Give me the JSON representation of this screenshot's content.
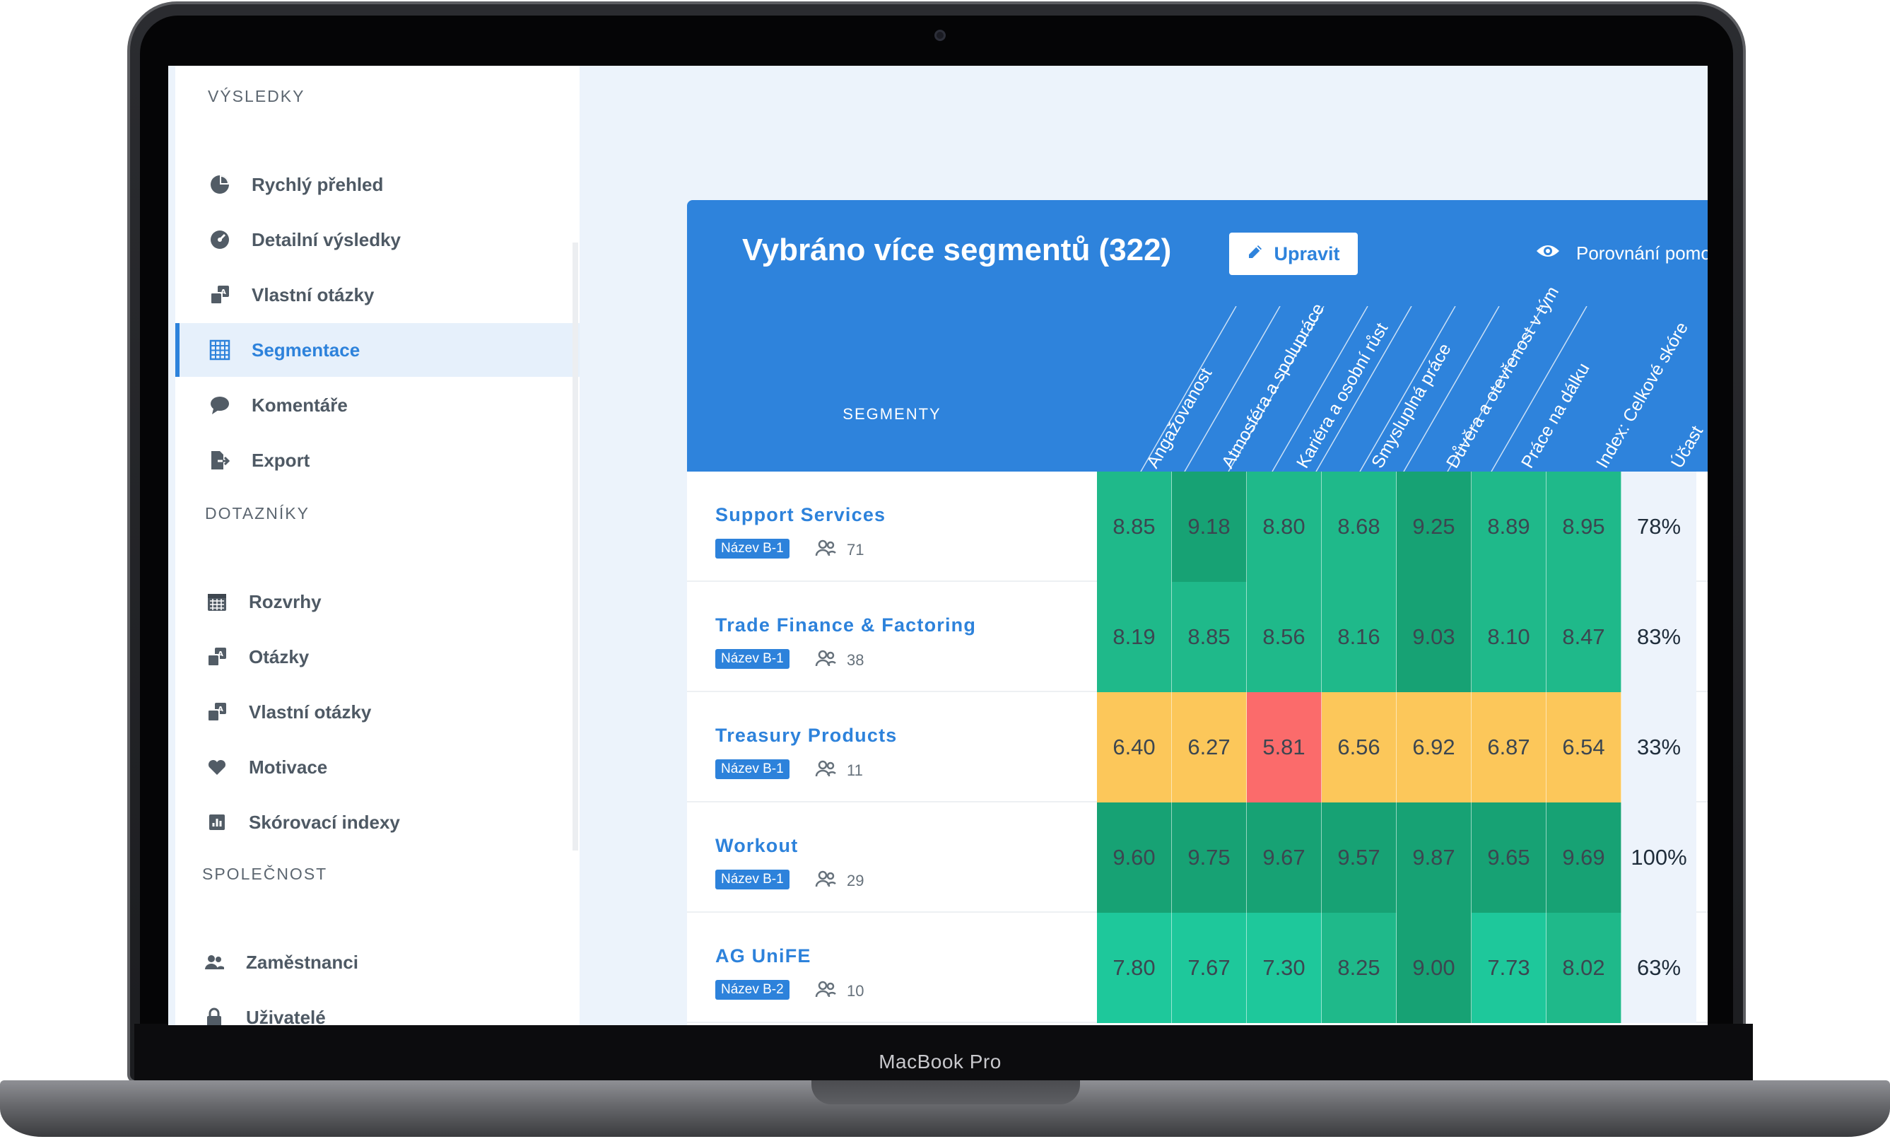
{
  "device": {
    "label": "MacBook Pro"
  },
  "sidebar": {
    "sections": [
      {
        "title": "VÝSLEDKY",
        "items": [
          {
            "label": "Rychlý přehled",
            "icon": "pie-chart-icon"
          },
          {
            "label": "Detailní výsledky",
            "icon": "gauge-icon"
          },
          {
            "label": "Vlastní otázky",
            "icon": "custom-question-icon"
          },
          {
            "label": "Segmentace",
            "icon": "grid-icon",
            "active": true
          },
          {
            "label": "Komentáře",
            "icon": "comment-icon"
          },
          {
            "label": "Export",
            "icon": "export-icon"
          }
        ]
      },
      {
        "title": "DOTAZNÍKY",
        "items": [
          {
            "label": "Rozvrhy",
            "icon": "calendar-icon"
          },
          {
            "label": "Otázky",
            "icon": "custom-question-icon"
          },
          {
            "label": "Vlastní otázky",
            "icon": "custom-question-icon"
          },
          {
            "label": "Motivace",
            "icon": "heart-icon"
          },
          {
            "label": "Skórovací indexy",
            "icon": "bar-chart-icon"
          }
        ]
      },
      {
        "title": "SPOLEČNOST",
        "items": [
          {
            "label": "Zaměstnanci",
            "icon": "people-icon"
          },
          {
            "label": "Uživatelé",
            "icon": "lock-icon"
          }
        ]
      }
    ]
  },
  "panel": {
    "title": "Vybráno více segmentů (322)",
    "edit_label": "Upravit",
    "compare_label": "Porovnání pomoc",
    "segments_header": "SEGMENTY",
    "columns": [
      "Angažovanost",
      "Atmosféra a spolupráce",
      "Kariéra a osobní růst",
      "Smysluplná práce",
      "Důvěra a otevřenost v tým",
      "Práce na dálku",
      "Index: Celkové skóre",
      "Účast"
    ]
  },
  "rows": [
    {
      "name": "Support Services",
      "badge": "Název B-1",
      "count": "71",
      "scores": [
        "8.85",
        "9.18",
        "8.80",
        "8.68",
        "9.25",
        "8.89",
        "8.95"
      ],
      "participation": "78%"
    },
    {
      "name": "Trade Finance & Factoring",
      "badge": "Název B-1",
      "count": "38",
      "scores": [
        "8.19",
        "8.85",
        "8.56",
        "8.16",
        "9.03",
        "8.10",
        "8.47"
      ],
      "participation": "83%"
    },
    {
      "name": "Treasury Products",
      "badge": "Název B-1",
      "count": "11",
      "scores": [
        "6.40",
        "6.27",
        "5.81",
        "6.56",
        "6.92",
        "6.87",
        "6.54"
      ],
      "participation": "33%"
    },
    {
      "name": "Workout",
      "badge": "Název B-1",
      "count": "29",
      "scores": [
        "9.60",
        "9.75",
        "9.67",
        "9.57",
        "9.87",
        "9.65",
        "9.69"
      ],
      "participation": "100%"
    },
    {
      "name": "AG UniFE",
      "badge": "Název B-2",
      "count": "10",
      "scores": [
        "7.80",
        "7.67",
        "7.30",
        "8.25",
        "9.00",
        "7.73",
        "8.02"
      ],
      "participation": "63%"
    }
  ],
  "colors": {
    "accent": "#2e83dc",
    "score_high": "#1fb98a",
    "score_very_high": "#17a274",
    "score_mid": "#1ec89b",
    "score_low": "#fcc75a",
    "score_critical": "#fb6b6b"
  }
}
